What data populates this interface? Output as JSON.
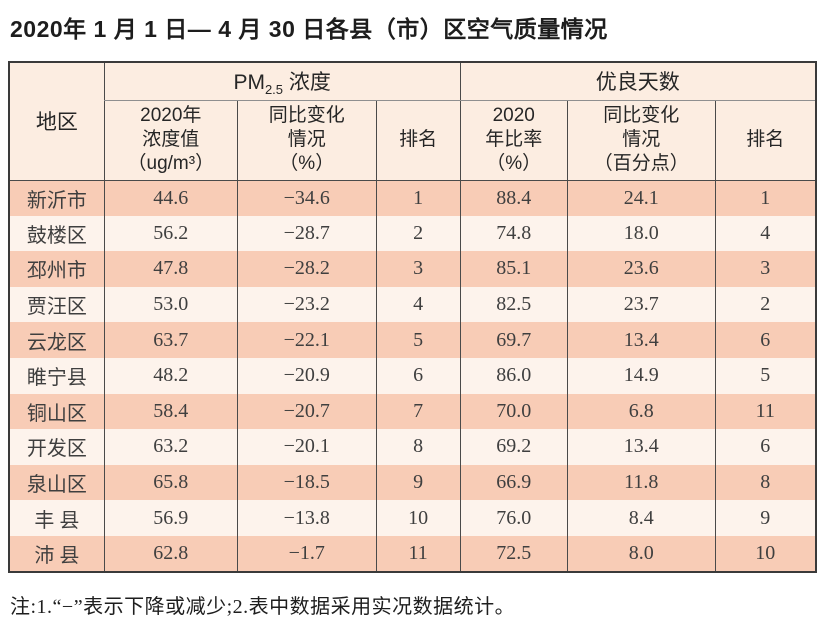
{
  "page": {
    "title": "2020年 1 月 1 日— 4 月 30 日各县（市）区空气质量情况",
    "note": "注:1.“−”表示下降或减少;2.表中数据采用实况数据统计。"
  },
  "colors": {
    "header_bg": "#fcede1",
    "row_odd": "#f8ccb6",
    "row_even": "#fdf3ec",
    "border_dark": "#3a3a3a",
    "inner_line": "#4a4a4a",
    "group_underline": "#8f8f8f"
  },
  "table": {
    "region_header": "地区",
    "groups": [
      {
        "name_prefix": "PM",
        "name_sub": "2.5",
        "name_suffix": " 浓度"
      },
      {
        "name": "优良天数"
      }
    ],
    "sub_headers": {
      "pm_value": "2020年\n浓度值\n（ug/m³）",
      "pm_change": "同比变化\n情况\n（%）",
      "pm_rank": "排名",
      "good_rate": "2020\n年比率\n（%）",
      "good_change": "同比变化\n情况\n（百分点）",
      "good_rank": "排名"
    },
    "row_keys": [
      "region",
      "pm_value",
      "pm_change",
      "pm_rank",
      "good_rate",
      "good_change",
      "good_rank"
    ],
    "rows": [
      {
        "region": "新沂市",
        "pm_value": "44.6",
        "pm_change": "−34.6",
        "pm_rank": "1",
        "good_rate": "88.4",
        "good_change": "24.1",
        "good_rank": "1"
      },
      {
        "region": "鼓楼区",
        "pm_value": "56.2",
        "pm_change": "−28.7",
        "pm_rank": "2",
        "good_rate": "74.8",
        "good_change": "18.0",
        "good_rank": "4"
      },
      {
        "region": "邳州市",
        "pm_value": "47.8",
        "pm_change": "−28.2",
        "pm_rank": "3",
        "good_rate": "85.1",
        "good_change": "23.6",
        "good_rank": "3"
      },
      {
        "region": "贾汪区",
        "pm_value": "53.0",
        "pm_change": "−23.2",
        "pm_rank": "4",
        "good_rate": "82.5",
        "good_change": "23.7",
        "good_rank": "2"
      },
      {
        "region": "云龙区",
        "pm_value": "63.7",
        "pm_change": "−22.1",
        "pm_rank": "5",
        "good_rate": "69.7",
        "good_change": "13.4",
        "good_rank": "6"
      },
      {
        "region": "睢宁县",
        "pm_value": "48.2",
        "pm_change": "−20.9",
        "pm_rank": "6",
        "good_rate": "86.0",
        "good_change": "14.9",
        "good_rank": "5"
      },
      {
        "region": "铜山区",
        "pm_value": "58.4",
        "pm_change": "−20.7",
        "pm_rank": "7",
        "good_rate": "70.0",
        "good_change": "6.8",
        "good_rank": "11"
      },
      {
        "region": "开发区",
        "pm_value": "63.2",
        "pm_change": "−20.1",
        "pm_rank": "8",
        "good_rate": "69.2",
        "good_change": "13.4",
        "good_rank": "6"
      },
      {
        "region": "泉山区",
        "pm_value": "65.8",
        "pm_change": "−18.5",
        "pm_rank": "9",
        "good_rate": "66.9",
        "good_change": "11.8",
        "good_rank": "8"
      },
      {
        "region": "丰 县",
        "pm_value": "56.9",
        "pm_change": "−13.8",
        "pm_rank": "10",
        "good_rate": "76.0",
        "good_change": "8.4",
        "good_rank": "9"
      },
      {
        "region": "沛 县",
        "pm_value": "62.8",
        "pm_change": "−1.7",
        "pm_rank": "11",
        "good_rate": "72.5",
        "good_change": "8.0",
        "good_rank": "10"
      }
    ]
  }
}
